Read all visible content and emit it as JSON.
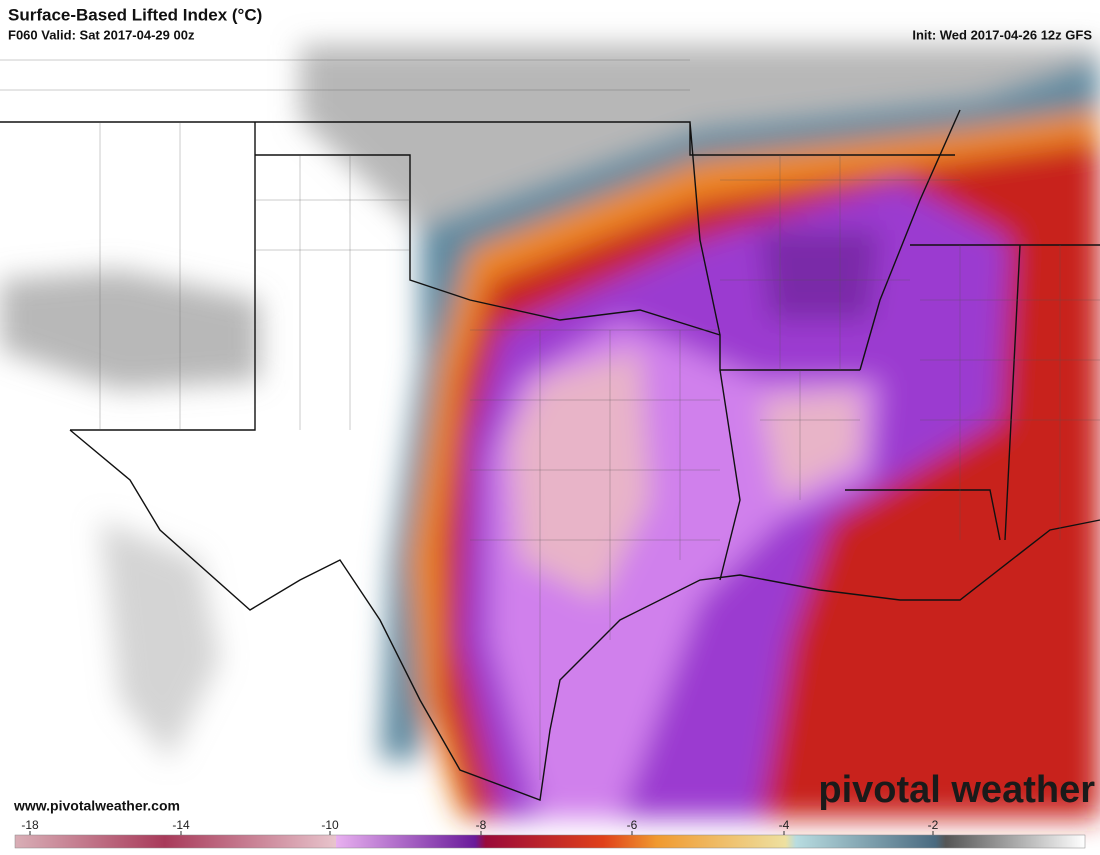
{
  "header": {
    "title": "Surface-Based Lifted Index (°C)",
    "valid": "F060 Valid: Sat 2017-04-29 00z",
    "init": "Init: Wed 2017-04-26 12z GFS"
  },
  "map": {
    "website": "www.pivotalweather.com",
    "logo": "pivotal weather"
  },
  "colorbar": {
    "ticks": [
      -18,
      -14,
      -10,
      -8,
      -6,
      -4,
      -2
    ]
  }
}
